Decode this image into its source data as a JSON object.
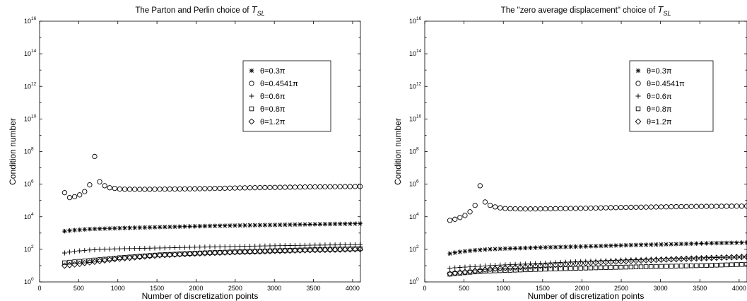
{
  "chart_data": [
    {
      "type": "scatter",
      "title_text": "The Parton and Perlin choice of ",
      "title_symbol": "T",
      "title_subscript": "SL",
      "xlabel": "Number of discretization points",
      "ylabel": "Condition number",
      "xlim": [
        0,
        4100
      ],
      "ylim": [
        1,
        1e+16
      ],
      "yscale": "log",
      "grid": false,
      "legend_position": "top-right",
      "xticks": [
        {
          "value": 0,
          "label": "0"
        },
        {
          "value": 500,
          "label": "500"
        },
        {
          "value": 1000,
          "label": "1000"
        },
        {
          "value": 1500,
          "label": "1500"
        },
        {
          "value": 2000,
          "label": "2000"
        },
        {
          "value": 2500,
          "label": "2500"
        },
        {
          "value": 3000,
          "label": "3000"
        },
        {
          "value": 3500,
          "label": "3500"
        },
        {
          "value": 4000,
          "label": "4000"
        }
      ],
      "yticks": [
        {
          "value": 1,
          "base": "10",
          "exp": "0"
        },
        {
          "value": 100.0,
          "base": "10",
          "exp": "2"
        },
        {
          "value": 10000.0,
          "base": "10",
          "exp": "4"
        },
        {
          "value": 1000000.0,
          "base": "10",
          "exp": "6"
        },
        {
          "value": 100000000.0,
          "base": "10",
          "exp": "8"
        },
        {
          "value": 10000000000.0,
          "base": "10",
          "exp": "10"
        },
        {
          "value": 1000000000000.0,
          "base": "10",
          "exp": "12"
        },
        {
          "value": 100000000000000.0,
          "base": "10",
          "exp": "14"
        },
        {
          "value": 1e+16,
          "base": "10",
          "exp": "16"
        }
      ],
      "series": [
        {
          "name": "θ=0.3π",
          "marker": "star",
          "points": [
            [
              320,
              1300
            ],
            [
              400,
              1450
            ],
            [
              480,
              1550
            ],
            [
              560,
              1650
            ],
            [
              640,
              1750
            ],
            [
              720,
              1800
            ],
            [
              800,
              1850
            ],
            [
              880,
              1900
            ],
            [
              960,
              1950
            ],
            [
              1040,
              2000
            ],
            [
              1200,
              2100
            ],
            [
              1500,
              2300
            ],
            [
              2000,
              2600
            ],
            [
              2500,
              2900
            ],
            [
              3000,
              3150
            ],
            [
              3500,
              3450
            ],
            [
              4096,
              3800
            ]
          ]
        },
        {
          "name": "θ=0.4541π",
          "marker": "circle",
          "points": [
            [
              320,
              300000
            ],
            [
              384,
              150000
            ],
            [
              448,
              170000
            ],
            [
              512,
              220000
            ],
            [
              576,
              350000
            ],
            [
              640,
              900000
            ],
            [
              704,
              50000000
            ],
            [
              768,
              1400000
            ],
            [
              832,
              800000
            ],
            [
              896,
              600000
            ],
            [
              960,
              550000
            ],
            [
              1024,
              500000
            ],
            [
              1100,
              490000
            ],
            [
              1300,
              480000
            ],
            [
              1500,
              490000
            ],
            [
              2000,
              520000
            ],
            [
              2500,
              580000
            ],
            [
              3000,
              630000
            ],
            [
              3500,
              680000
            ],
            [
              4096,
              720000
            ]
          ]
        },
        {
          "name": "θ=0.6π",
          "marker": "plus",
          "points": [
            [
              320,
              60
            ],
            [
              400,
              70
            ],
            [
              500,
              80
            ],
            [
              600,
              88
            ],
            [
              700,
              95
            ],
            [
              800,
              100
            ],
            [
              1000,
              108
            ],
            [
              1500,
              120
            ],
            [
              2000,
              135
            ],
            [
              2500,
              150
            ],
            [
              3000,
              165
            ],
            [
              3500,
              180
            ],
            [
              4096,
              195
            ]
          ]
        },
        {
          "name": "θ=0.8π",
          "marker": "square",
          "points": [
            [
              320,
              15
            ],
            [
              400,
              16.5
            ],
            [
              500,
              18
            ],
            [
              600,
              20
            ],
            [
              700,
              22
            ],
            [
              800,
              24
            ],
            [
              1000,
              30
            ],
            [
              1500,
              45
            ],
            [
              2000,
              58
            ],
            [
              2500,
              70
            ],
            [
              3000,
              82
            ],
            [
              3500,
              95
            ],
            [
              4096,
              110
            ]
          ]
        },
        {
          "name": "θ=1.2π",
          "marker": "diamond",
          "points": [
            [
              320,
              10
            ],
            [
              400,
              11
            ],
            [
              500,
              12.5
            ],
            [
              600,
              15
            ],
            [
              700,
              17
            ],
            [
              800,
              20
            ],
            [
              1000,
              26
            ],
            [
              1500,
              42
            ],
            [
              2000,
              55
            ],
            [
              2500,
              67
            ],
            [
              3000,
              78
            ],
            [
              3500,
              90
            ],
            [
              4096,
              100
            ]
          ]
        }
      ]
    },
    {
      "type": "scatter",
      "title_text": "The \"zero average displacement\" choice of ",
      "title_symbol": "T",
      "title_subscript": "SL",
      "xlabel": "Number of discretization points",
      "ylabel": "Condition number",
      "xlim": [
        0,
        4100
      ],
      "ylim": [
        1,
        1e+16
      ],
      "yscale": "log",
      "grid": false,
      "legend_position": "top-right",
      "xticks": [
        {
          "value": 0,
          "label": "0"
        },
        {
          "value": 500,
          "label": "500"
        },
        {
          "value": 1000,
          "label": "1000"
        },
        {
          "value": 1500,
          "label": "1500"
        },
        {
          "value": 2000,
          "label": "2000"
        },
        {
          "value": 2500,
          "label": "2500"
        },
        {
          "value": 3000,
          "label": "3000"
        },
        {
          "value": 3500,
          "label": "3500"
        },
        {
          "value": 4000,
          "label": "4000"
        }
      ],
      "yticks": [
        {
          "value": 1,
          "base": "10",
          "exp": "0"
        },
        {
          "value": 100.0,
          "base": "10",
          "exp": "2"
        },
        {
          "value": 10000.0,
          "base": "10",
          "exp": "4"
        },
        {
          "value": 1000000.0,
          "base": "10",
          "exp": "6"
        },
        {
          "value": 100000000.0,
          "base": "10",
          "exp": "8"
        },
        {
          "value": 10000000000.0,
          "base": "10",
          "exp": "10"
        },
        {
          "value": 1000000000000.0,
          "base": "10",
          "exp": "12"
        },
        {
          "value": 100000000000000.0,
          "base": "10",
          "exp": "14"
        },
        {
          "value": 1e+16,
          "base": "10",
          "exp": "16"
        }
      ],
      "series": [
        {
          "name": "θ=0.3π",
          "marker": "star",
          "points": [
            [
              320,
              55
            ],
            [
              400,
              65
            ],
            [
              500,
              75
            ],
            [
              600,
              85
            ],
            [
              700,
              92
            ],
            [
              800,
              100
            ],
            [
              1000,
              110
            ],
            [
              1500,
              130
            ],
            [
              2000,
              150
            ],
            [
              2500,
              175
            ],
            [
              3000,
              200
            ],
            [
              3500,
              230
            ],
            [
              4096,
              260
            ]
          ]
        },
        {
          "name": "θ=0.4541π",
          "marker": "circle",
          "points": [
            [
              320,
              6000
            ],
            [
              384,
              7000
            ],
            [
              448,
              9000
            ],
            [
              512,
              12000
            ],
            [
              576,
              20000
            ],
            [
              640,
              50000
            ],
            [
              704,
              800000
            ],
            [
              768,
              80000
            ],
            [
              832,
              50000
            ],
            [
              896,
              40000
            ],
            [
              960,
              35000
            ],
            [
              1024,
              32000
            ],
            [
              1100,
              31000
            ],
            [
              1300,
              30000
            ],
            [
              1500,
              30500
            ],
            [
              2000,
              33000
            ],
            [
              2500,
              37000
            ],
            [
              3000,
              40000
            ],
            [
              3500,
              43000
            ],
            [
              4096,
              45000
            ]
          ]
        },
        {
          "name": "θ=0.6π",
          "marker": "plus",
          "points": [
            [
              320,
              7
            ],
            [
              400,
              7.5
            ],
            [
              500,
              8
            ],
            [
              600,
              8.5
            ],
            [
              700,
              9
            ],
            [
              800,
              10
            ],
            [
              1000,
              11
            ],
            [
              1500,
              14
            ],
            [
              2000,
              18
            ],
            [
              2500,
              22
            ],
            [
              3000,
              26
            ],
            [
              3500,
              30
            ],
            [
              4096,
              34
            ]
          ]
        },
        {
          "name": "θ=0.8π",
          "marker": "square",
          "points": [
            [
              320,
              3
            ],
            [
              400,
              3.3
            ],
            [
              500,
              3.6
            ],
            [
              600,
              4
            ],
            [
              700,
              4.3
            ],
            [
              800,
              4.6
            ],
            [
              1000,
              5
            ],
            [
              1500,
              6
            ],
            [
              2000,
              7
            ],
            [
              2500,
              8
            ],
            [
              3000,
              9
            ],
            [
              3500,
              10
            ],
            [
              4096,
              12
            ]
          ]
        },
        {
          "name": "θ=1.2π",
          "marker": "diamond",
          "points": [
            [
              320,
              3.2
            ],
            [
              400,
              3.6
            ],
            [
              500,
              4
            ],
            [
              600,
              4.6
            ],
            [
              700,
              5.2
            ],
            [
              800,
              6
            ],
            [
              1000,
              7
            ],
            [
              1500,
              10
            ],
            [
              2000,
              14
            ],
            [
              2500,
              18
            ],
            [
              3000,
              23
            ],
            [
              3500,
              28
            ],
            [
              4096,
              35
            ]
          ]
        }
      ]
    }
  ]
}
